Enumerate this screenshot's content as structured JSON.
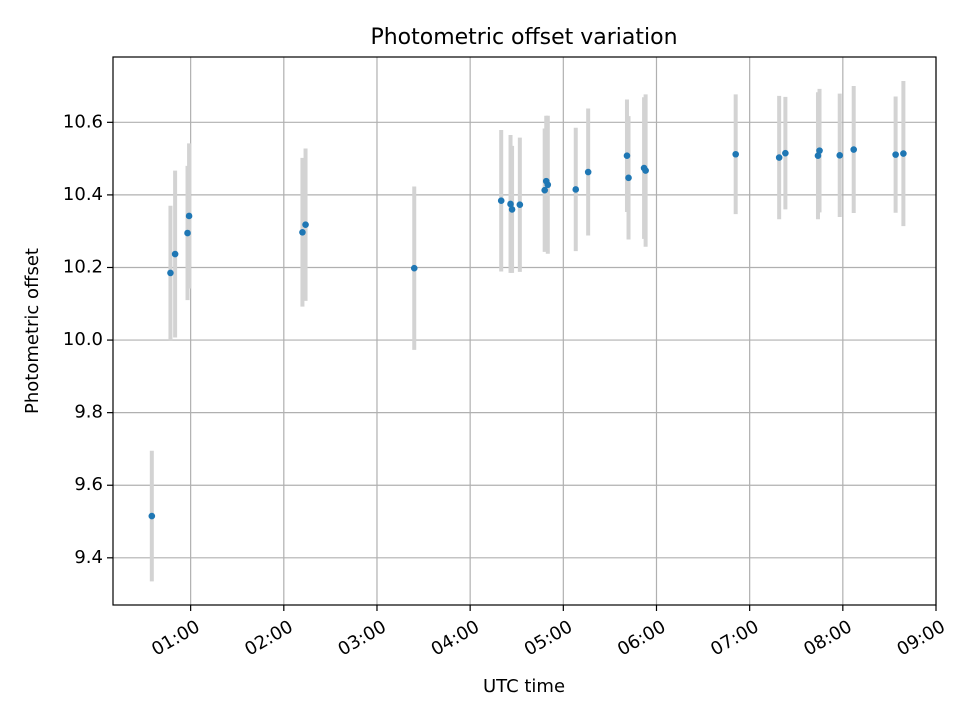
{
  "chart_data": {
    "type": "scatter",
    "title": "Photometric offset variation",
    "xlabel": "UTC time",
    "ylabel": "Photometric offset",
    "x_axis_type": "time",
    "xlim": [
      "00:10",
      "09:00"
    ],
    "ylim": [
      9.27,
      10.78
    ],
    "xticks": [
      "01:00",
      "02:00",
      "03:00",
      "04:00",
      "05:00",
      "06:00",
      "07:00",
      "08:00",
      "09:00"
    ],
    "yticks": [
      9.4,
      9.6,
      9.8,
      10.0,
      10.2,
      10.4,
      10.6
    ],
    "ytick_labels": [
      "9.4",
      "9.6",
      "9.8",
      "10.0",
      "10.2",
      "10.4",
      "10.6"
    ],
    "grid": true,
    "legend": "none",
    "colors": {
      "point": "#1f77b4",
      "errorbar": "#d3d3d3",
      "grid": "#b0b0b0"
    },
    "series": [
      {
        "points": [
          {
            "x": "00:35",
            "y": 9.515,
            "yerr": 0.18
          },
          {
            "x": "00:47",
            "y": 10.185,
            "yerr": 0.185
          },
          {
            "x": "00:50",
            "y": 10.237,
            "yerr": 0.23
          },
          {
            "x": "00:58",
            "y": 10.295,
            "yerr": 0.185
          },
          {
            "x": "00:59",
            "y": 10.342,
            "yerr": 0.2
          },
          {
            "x": "02:12",
            "y": 10.297,
            "yerr": 0.205
          },
          {
            "x": "02:14",
            "y": 10.318,
            "yerr": 0.21
          },
          {
            "x": "03:24",
            "y": 10.198,
            "yerr": 0.225
          },
          {
            "x": "04:20",
            "y": 10.384,
            "yerr": 0.195
          },
          {
            "x": "04:26",
            "y": 10.375,
            "yerr": 0.19
          },
          {
            "x": "04:27",
            "y": 10.36,
            "yerr": 0.175
          },
          {
            "x": "04:32",
            "y": 10.373,
            "yerr": 0.185
          },
          {
            "x": "04:48",
            "y": 10.413,
            "yerr": 0.17
          },
          {
            "x": "04:49",
            "y": 10.438,
            "yerr": 0.18
          },
          {
            "x": "04:50",
            "y": 10.428,
            "yerr": 0.19
          },
          {
            "x": "05:08",
            "y": 10.415,
            "yerr": 0.17
          },
          {
            "x": "05:16",
            "y": 10.463,
            "yerr": 0.175
          },
          {
            "x": "05:41",
            "y": 10.508,
            "yerr": 0.155
          },
          {
            "x": "05:42",
            "y": 10.447,
            "yerr": 0.17
          },
          {
            "x": "05:52",
            "y": 10.474,
            "yerr": 0.195
          },
          {
            "x": "05:53",
            "y": 10.467,
            "yerr": 0.21
          },
          {
            "x": "06:51",
            "y": 10.512,
            "yerr": 0.165
          },
          {
            "x": "07:19",
            "y": 10.503,
            "yerr": 0.17
          },
          {
            "x": "07:23",
            "y": 10.515,
            "yerr": 0.155
          },
          {
            "x": "07:44",
            "y": 10.508,
            "yerr": 0.175
          },
          {
            "x": "07:45",
            "y": 10.522,
            "yerr": 0.17
          },
          {
            "x": "07:58",
            "y": 10.509,
            "yerr": 0.17
          },
          {
            "x": "08:07",
            "y": 10.525,
            "yerr": 0.175
          },
          {
            "x": "08:34",
            "y": 10.511,
            "yerr": 0.16
          },
          {
            "x": "08:39",
            "y": 10.514,
            "yerr": 0.2
          }
        ]
      }
    ]
  }
}
